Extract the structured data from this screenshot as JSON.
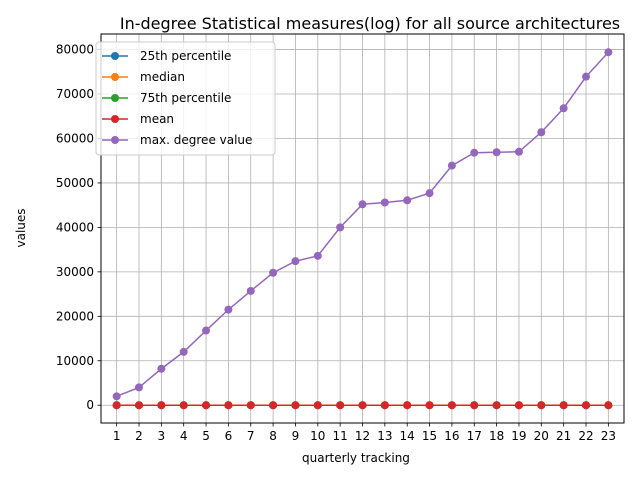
{
  "chart_data": {
    "type": "line",
    "title": "In-degree Statistical measures(log) for all source architectures",
    "xlabel": "quarterly tracking",
    "ylabel": "values",
    "x": [
      1,
      2,
      3,
      4,
      5,
      6,
      7,
      8,
      9,
      10,
      11,
      12,
      13,
      14,
      15,
      16,
      17,
      18,
      19,
      20,
      21,
      22,
      23
    ],
    "xticks": [
      "1",
      "2",
      "3",
      "4",
      "5",
      "6",
      "7",
      "8",
      "9",
      "10",
      "11",
      "12",
      "13",
      "14",
      "15",
      "16",
      "17",
      "18",
      "19",
      "20",
      "21",
      "22",
      "23"
    ],
    "ylim": [
      -4000,
      83500
    ],
    "yticks": [
      0,
      10000,
      20000,
      30000,
      40000,
      50000,
      60000,
      70000,
      80000
    ],
    "ytick_labels": [
      "0",
      "10000",
      "20000",
      "30000",
      "40000",
      "50000",
      "60000",
      "70000",
      "80000"
    ],
    "grid": true,
    "legend_position": "top-left",
    "series": [
      {
        "name": "25th percentile",
        "color": "#1f77b4",
        "values": [
          1,
          1,
          1,
          1,
          1,
          1,
          1,
          1,
          1,
          1,
          1,
          1,
          1,
          1,
          1,
          1,
          1,
          1,
          1,
          1,
          1,
          1,
          1
        ]
      },
      {
        "name": "median",
        "color": "#ff7f0e",
        "values": [
          1,
          1,
          1,
          1,
          1,
          1,
          1,
          1,
          1,
          1,
          1,
          1,
          1,
          1,
          1,
          1,
          1,
          1,
          1,
          1,
          1,
          1,
          1
        ]
      },
      {
        "name": "75th percentile",
        "color": "#2ca02c",
        "values": [
          3,
          3,
          3,
          3,
          3,
          3,
          3,
          3,
          3,
          3,
          3,
          3,
          3,
          3,
          3,
          3,
          3,
          3,
          3,
          3,
          3,
          3,
          3
        ]
      },
      {
        "name": "mean",
        "color": "#d62728",
        "values": [
          5,
          5,
          5,
          5,
          5,
          5,
          5,
          5,
          5,
          5,
          5,
          5,
          5,
          5,
          5,
          5,
          5,
          5,
          5,
          5,
          5,
          5,
          5
        ]
      },
      {
        "name": "max. degree value",
        "color": "#9467bd",
        "values": [
          2000,
          4000,
          8200,
          12000,
          16800,
          21500,
          25700,
          29800,
          32400,
          33600,
          40000,
          45200,
          45600,
          46100,
          47700,
          53900,
          56800,
          56900,
          57000,
          61400,
          66800,
          73900,
          79400
        ]
      }
    ]
  }
}
